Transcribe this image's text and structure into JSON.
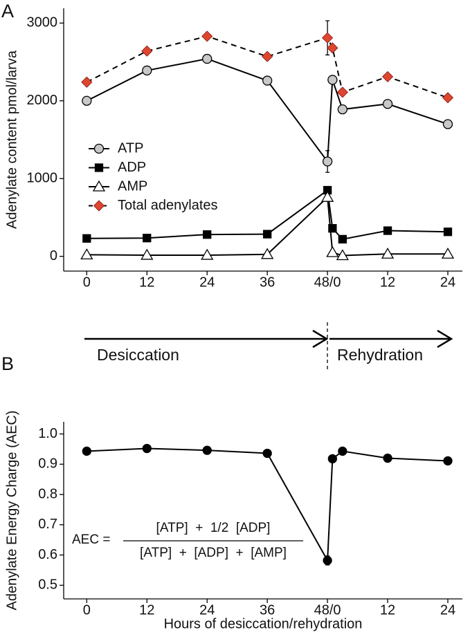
{
  "chart_data": [
    {
      "type": "line",
      "panel_label": "A",
      "ylabel": "Adenylate content pmol/larva",
      "x": [
        0,
        12,
        24,
        36,
        48,
        49,
        51,
        60,
        72
      ],
      "xlim": [
        -4.6,
        74.9
      ],
      "xticks": [
        0,
        12,
        24,
        36,
        {
          "value": 48,
          "label": "48/0"
        },
        {
          "value": 60,
          "label": "12"
        },
        {
          "value": 72,
          "label": "24"
        }
      ],
      "ylim": [
        -190,
        3190
      ],
      "yticks": [
        0,
        1000,
        2000,
        3000
      ],
      "legend": "left",
      "series": [
        {
          "name": "Total adenylates",
          "color": "#e0452f",
          "marker": "diamond",
          "dashed": true,
          "values": [
            2240,
            2640,
            2830,
            2570,
            2810,
            2680,
            2110,
            2310,
            2040
          ],
          "errors": [
            null,
            null,
            null,
            null,
            220,
            null,
            null,
            null,
            null
          ]
        },
        {
          "name": "ATP",
          "color": "#c8c8c8",
          "marker": "circle",
          "dashed": false,
          "values": [
            2000,
            2390,
            2540,
            2260,
            1220,
            2270,
            1890,
            1960,
            1700
          ],
          "errors": [
            null,
            null,
            null,
            null,
            140,
            null,
            null,
            null,
            null
          ]
        },
        {
          "name": "ADP",
          "color": "#000000",
          "marker": "square",
          "dashed": false,
          "values": [
            230,
            235,
            280,
            285,
            850,
            360,
            220,
            330,
            315
          ]
        },
        {
          "name": "AMP",
          "color": "#ffffff",
          "marker": "triangle",
          "dashed": false,
          "values": [
            20,
            15,
            15,
            25,
            760,
            50,
            10,
            30,
            30
          ]
        }
      ],
      "legend_order": [
        1,
        2,
        3,
        0
      ]
    },
    {
      "type": "line",
      "panel_label": "B",
      "ylabel": "Adenylate Energy Charge (AEC)",
      "xlabel": "Hours of desiccation/rehydration",
      "x": [
        0,
        12,
        24,
        36,
        48,
        49,
        51,
        60,
        72
      ],
      "xlim": [
        -4.6,
        74.9
      ],
      "xticks": [
        0,
        12,
        24,
        36,
        {
          "value": 48,
          "label": "48/0"
        },
        {
          "value": 60,
          "label": "12"
        },
        {
          "value": 72,
          "label": "24"
        }
      ],
      "ylim": [
        0.455,
        1.04
      ],
      "yticks": [
        0.5,
        0.6,
        0.7,
        0.8,
        0.9,
        {
          "value": 1,
          "label": "1.0"
        }
      ],
      "series": [
        {
          "name": "AEC",
          "color": "#000000",
          "marker": "dot",
          "dashed": false,
          "values": [
            0.943,
            0.952,
            0.946,
            0.936,
            0.582,
            0.918,
            0.943,
            0.92,
            0.911
          ],
          "errors": [
            null,
            null,
            null,
            null,
            0.015,
            null,
            null,
            null,
            null
          ]
        }
      ],
      "formula": {
        "lhs": "AEC =",
        "numerator": "[ATP]  +  1/2  [ADP]",
        "denominator": "[ATP]  +  [ADP]  +  [AMP]"
      }
    }
  ],
  "timeline": {
    "labels": [
      "Desiccation",
      "Rehydration"
    ]
  }
}
